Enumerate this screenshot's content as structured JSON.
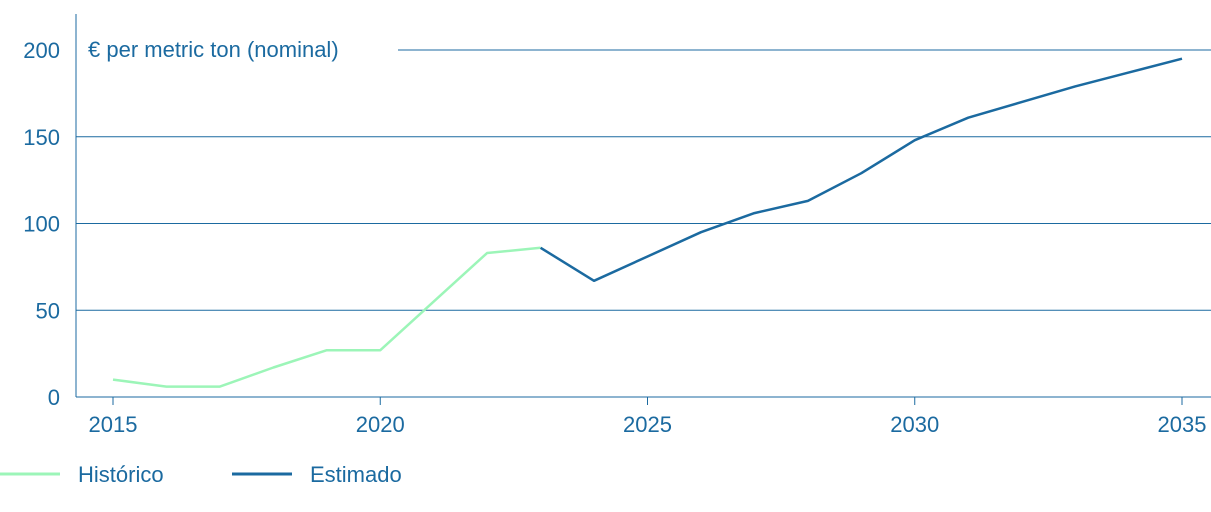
{
  "chart_data": {
    "type": "line",
    "title": "",
    "unit_label": "€ per metric ton (nominal)",
    "xlabel": "",
    "ylabel": "",
    "xlim": [
      2015,
      2035
    ],
    "ylim": [
      0,
      200
    ],
    "x_ticks": [
      2015,
      2020,
      2025,
      2030,
      2035
    ],
    "y_ticks": [
      0,
      50,
      100,
      150,
      200
    ],
    "grid": "horizontal",
    "legend_position": "bottom-left",
    "series": [
      {
        "name": "Histórico",
        "color": "#9cf5b8",
        "points": [
          {
            "x": 2015,
            "y": 10
          },
          {
            "x": 2016,
            "y": 6
          },
          {
            "x": 2017,
            "y": 6
          },
          {
            "x": 2018,
            "y": 17
          },
          {
            "x": 2019,
            "y": 27
          },
          {
            "x": 2020,
            "y": 27
          },
          {
            "x": 2021,
            "y": 55
          },
          {
            "x": 2022,
            "y": 83
          },
          {
            "x": 2023,
            "y": 86
          }
        ]
      },
      {
        "name": "Estimado",
        "color": "#1b6aa0",
        "points": [
          {
            "x": 2023,
            "y": 86
          },
          {
            "x": 2024,
            "y": 67
          },
          {
            "x": 2025,
            "y": 81
          },
          {
            "x": 2026,
            "y": 95
          },
          {
            "x": 2027,
            "y": 106
          },
          {
            "x": 2028,
            "y": 113
          },
          {
            "x": 2029,
            "y": 129
          },
          {
            "x": 2030,
            "y": 148
          },
          {
            "x": 2031,
            "y": 161
          },
          {
            "x": 2032,
            "y": 170
          },
          {
            "x": 2033,
            "y": 179
          },
          {
            "x": 2034,
            "y": 187
          },
          {
            "x": 2035,
            "y": 195
          }
        ]
      }
    ]
  }
}
